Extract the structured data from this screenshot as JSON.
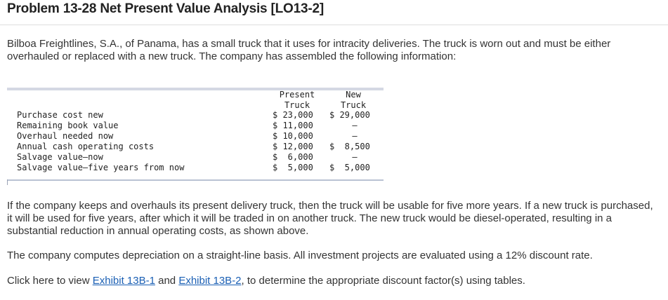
{
  "title": "Problem 13-28 Net Present Value Analysis [LO13-2]",
  "intro": "Bilboa Freightlines, S.A., of Panama, has a small truck that it uses for intracity deliveries. The truck is worn out and must be either overhauled or replaced with a new truck. The company has assembled the following information:",
  "table": {
    "headers": {
      "present": [
        "Present",
        "Truck"
      ],
      "new": [
        "New",
        "Truck"
      ]
    },
    "rows": [
      {
        "label": "Purchase cost new",
        "present": "$ 23,000",
        "new": "$ 29,000"
      },
      {
        "label": "Remaining book value",
        "present": "$ 11,000",
        "new": "–"
      },
      {
        "label": "Overhaul needed now",
        "present": "$ 10,000",
        "new": "–"
      },
      {
        "label": "Annual cash operating costs",
        "present": "$ 12,000",
        "new": "$  8,500"
      },
      {
        "label": "Salvage value–now",
        "present": "$  6,000",
        "new": "–"
      },
      {
        "label": "Salvage value–five years from now",
        "present": "$  5,000",
        "new": "$  5,000"
      }
    ]
  },
  "para2": "If the company keeps and overhauls its present delivery truck, then the truck will be usable for five more years. If a new truck is purchased, it will be used for five years, after which it will be traded in on another truck. The new truck would be diesel-operated, resulting in a substantial reduction in annual operating costs, as shown above.",
  "para3": "The company computes depreciation on a straight-line basis. All investment projects are evaluated using a 12% discount rate.",
  "para4": {
    "before": "Click here to view ",
    "link1": "Exhibit 13B-1",
    "middle": " and ",
    "link2": "Exhibit 13B-2",
    "after": ", to determine the appropriate discount factor(s) using tables."
  }
}
